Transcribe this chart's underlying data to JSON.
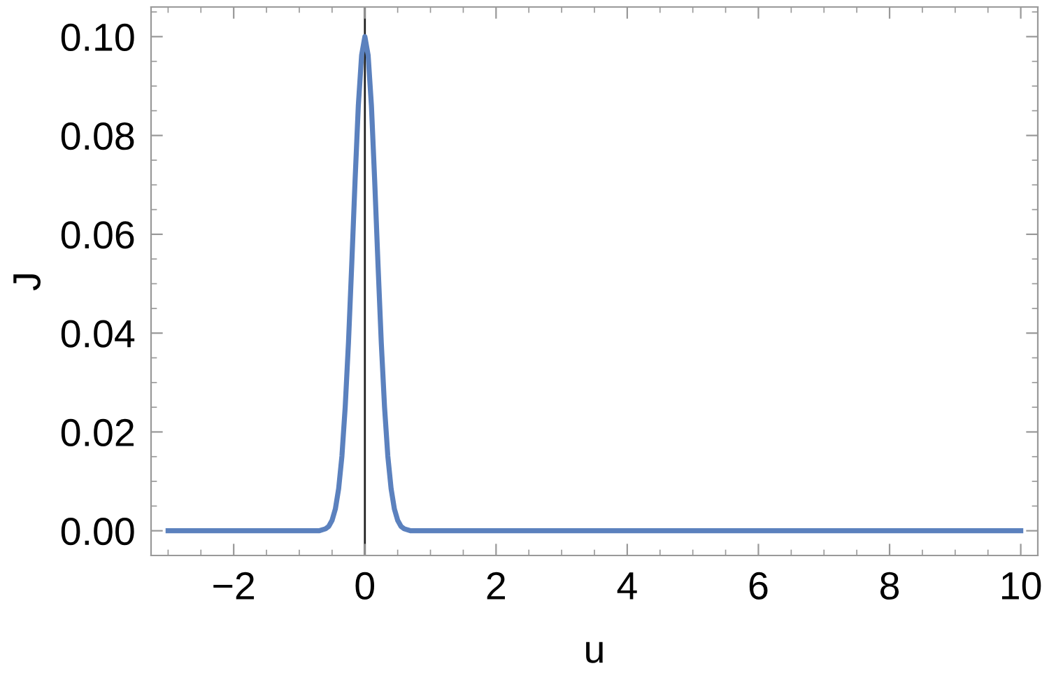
{
  "chart_data": {
    "type": "line",
    "xlabel": "u",
    "ylabel": "J",
    "x": [
      -3,
      -1,
      -0.8,
      -0.7,
      -0.6,
      -0.55,
      -0.5,
      -0.45,
      -0.4,
      -0.35,
      -0.3,
      -0.25,
      -0.2,
      -0.15,
      -0.1,
      -0.05,
      0,
      0.05,
      0.1,
      0.15,
      0.2,
      0.25,
      0.3,
      0.35,
      0.4,
      0.45,
      0.5,
      0.55,
      0.6,
      0.7,
      0.8,
      1,
      10
    ],
    "series": [
      {
        "color": "#5b81be",
        "values": [
          0,
          0,
          0,
          0,
          0.0004,
          0.0009,
          0.0021,
          0.0044,
          0.0085,
          0.0151,
          0.025,
          0.0381,
          0.054,
          0.0707,
          0.086,
          0.0962,
          0.1,
          0.0962,
          0.086,
          0.0707,
          0.054,
          0.0381,
          0.025,
          0.0151,
          0.0085,
          0.0044,
          0.0021,
          0.0009,
          0.0004,
          0,
          0,
          0,
          0
        ]
      }
    ],
    "xlim": [
      -3.26,
      10.26
    ],
    "ylim": [
      -0.005,
      0.106
    ],
    "xticks": [
      {
        "value": -2,
        "label": "−2"
      },
      0,
      2,
      4,
      6,
      8,
      10
    ],
    "yticks": [
      {
        "value": 0,
        "label": "0.00"
      },
      {
        "value": 0.02,
        "label": "0.02"
      },
      {
        "value": 0.04,
        "label": "0.04"
      },
      {
        "value": 0.06,
        "label": "0.06"
      },
      {
        "value": 0.08,
        "label": "0.08"
      },
      {
        "value": 0.1,
        "label": "0.10"
      }
    ],
    "ref_lines": [
      {
        "axis": "x",
        "value": 0,
        "color": "#222222"
      }
    ],
    "grid": false,
    "legend": false,
    "marker": "none",
    "line_style": "solid"
  }
}
